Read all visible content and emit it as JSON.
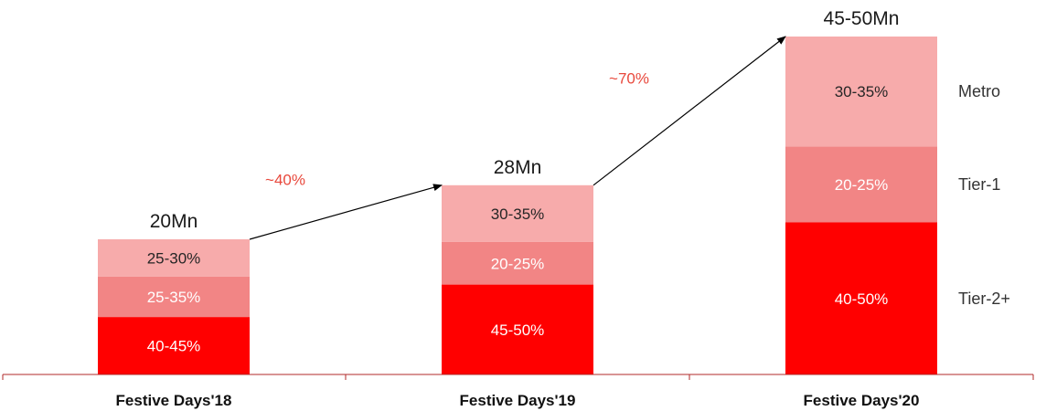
{
  "chart_data": {
    "type": "bar",
    "stacked": true,
    "categories": [
      "Festive Days'18",
      "Festive Days'19",
      "Festive Days'20"
    ],
    "totals": [
      "20Mn",
      "28Mn",
      "45-50Mn"
    ],
    "total_values": [
      20,
      28,
      50
    ],
    "series": [
      {
        "name": "Tier-2+",
        "color": "#ff0000",
        "label_color": "#ffffff",
        "shares": [
          0.425,
          0.475,
          0.45
        ],
        "labels": [
          "40-45%",
          "45-50%",
          "40-50%"
        ]
      },
      {
        "name": "Tier-1",
        "color": "#f28585",
        "label_color": "#ffffff",
        "shares": [
          0.3,
          0.225,
          0.225
        ],
        "labels": [
          "25-35%",
          "20-25%",
          "20-25%"
        ]
      },
      {
        "name": "Metro",
        "color": "#f7abab",
        "label_color": "#262626",
        "shares": [
          0.275,
          0.3,
          0.325
        ],
        "labels": [
          "25-30%",
          "30-35%",
          "30-35%"
        ]
      }
    ],
    "growth": [
      {
        "from": 0,
        "to": 1,
        "label": "~40%"
      },
      {
        "from": 1,
        "to": 2,
        "label": "~70%"
      }
    ],
    "growth_color": "#e8483c",
    "legend_position": "right",
    "grid": false,
    "ylim": [
      0,
      50
    ]
  }
}
